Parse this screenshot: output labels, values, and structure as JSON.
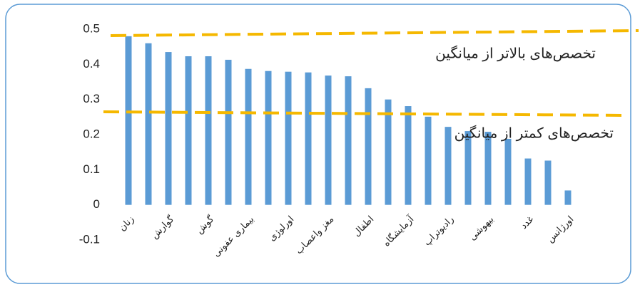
{
  "chart_data": {
    "type": "bar",
    "categories": [
      "زنان",
      null,
      "گوارش",
      null,
      "گوش",
      null,
      "بیماری عفونی",
      null,
      "اورلوژی",
      null,
      "مغز واعصاب",
      null,
      "اطفال",
      null,
      "آزمایشگاه",
      null,
      "رادیوتراپ",
      null,
      "بیهوشی",
      null,
      "غدد",
      null,
      "اورژانس"
    ],
    "values": [
      0.48,
      0.46,
      0.435,
      0.423,
      0.423,
      0.413,
      0.387,
      0.381,
      0.379,
      0.377,
      0.368,
      0.366,
      0.332,
      0.3,
      0.281,
      0.251,
      0.222,
      0.21,
      0.208,
      0.188,
      0.132,
      0.126,
      0.041
    ],
    "color": "#5b9bd5",
    "ylim": [
      -0.1,
      0.5
    ],
    "yticks": [
      -0.1,
      0,
      0.1,
      0.2,
      0.3,
      0.4,
      0.5
    ],
    "annotations": [
      "تخصص‌های بالاتر از میانگین",
      "تخصص‌های کمتر از میانگین"
    ]
  }
}
